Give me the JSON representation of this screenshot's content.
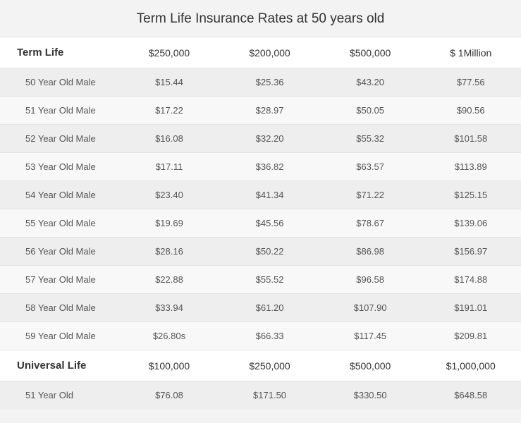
{
  "title": "Term Life Insurance Rates at 50 years old",
  "colors": {
    "page_bg": "#f3f3f3",
    "row_odd": "#eeeeee",
    "row_even": "#f8f8f8",
    "header_bg": "#ffffff",
    "border": "#e3e3e3",
    "title_text": "#333333",
    "cell_text": "#555555"
  },
  "term": {
    "label": "Term Life",
    "columns": [
      "$250,000",
      "$200,000",
      "$500,000",
      "$ 1Million"
    ],
    "rows": [
      {
        "label": "50 Year Old Male",
        "cells": [
          "$15.44",
          "$25.36",
          "$43.20",
          "$77.56"
        ]
      },
      {
        "label": "51 Year Old Male",
        "cells": [
          "$17.22",
          "$28.97",
          "$50.05",
          "$90.56"
        ]
      },
      {
        "label": "52 Year Old Male",
        "cells": [
          "$16.08",
          "$32.20",
          "$55.32",
          "$101.58"
        ]
      },
      {
        "label": "53 Year Old Male",
        "cells": [
          "$17.11",
          "$36.82",
          "$63.57",
          "$113.89"
        ]
      },
      {
        "label": "54 Year Old Male",
        "cells": [
          "$23.40",
          "$41.34",
          "$71.22",
          "$125.15"
        ]
      },
      {
        "label": "55 Year Old Male",
        "cells": [
          "$19.69",
          "$45.56",
          "$78.67",
          "$139.06"
        ]
      },
      {
        "label": "56 Year Old Male",
        "cells": [
          "$28.16",
          "$50.22",
          "$86.98",
          "$156.97"
        ]
      },
      {
        "label": "57 Year Old Male",
        "cells": [
          "$22.88",
          "$55.52",
          "$96.58",
          "$174.88"
        ]
      },
      {
        "label": "58 Year Old Male",
        "cells": [
          "$33.94",
          "$61.20",
          "$107.90",
          "$191.01"
        ]
      },
      {
        "label": "59 Year Old Male",
        "cells": [
          "$26.80s",
          "$66.33",
          "$117.45",
          "$209.81"
        ]
      }
    ]
  },
  "universal": {
    "label": "Universal Life",
    "columns": [
      "$100,000",
      "$250,000",
      "$500,000",
      "$1,000,000"
    ],
    "rows": [
      {
        "label": "51 Year Old",
        "cells": [
          "$76.08",
          "$171.50",
          "$330.50",
          "$648.58"
        ]
      }
    ]
  }
}
